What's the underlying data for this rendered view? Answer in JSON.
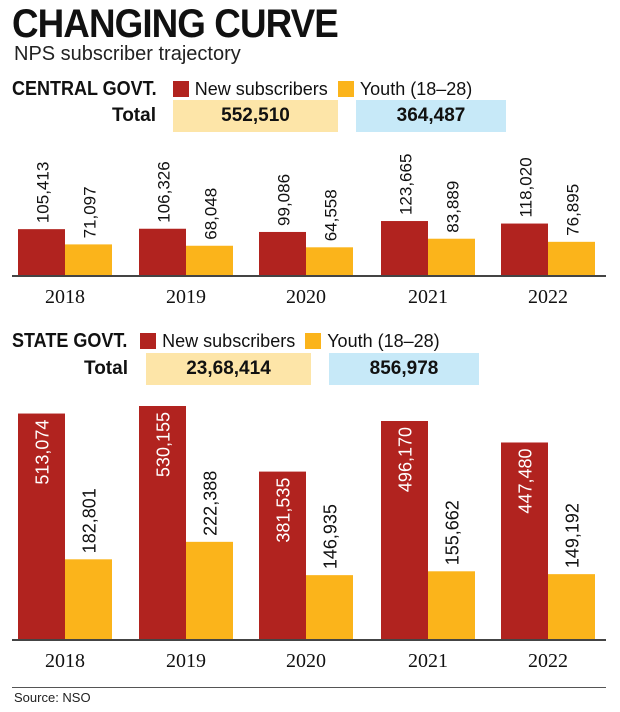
{
  "header": {
    "title": "CHANGING CURVE",
    "subtitle": "NPS subscriber trajectory"
  },
  "colors": {
    "new_subscribers": "#b1231f",
    "youth": "#fbb41b",
    "total_new_bg": "#fde5a8",
    "total_youth_bg": "#c7e9f8"
  },
  "source": "Source: NSO",
  "chart_data": [
    {
      "type": "bar",
      "section_title": "CENTRAL GOVT.",
      "categories": [
        "2018",
        "2019",
        "2020",
        "2021",
        "2022"
      ],
      "series": [
        {
          "name": "New subscribers",
          "values": [
            105413,
            106326,
            99086,
            123665,
            118020
          ],
          "labels": [
            "105,413",
            "106,326",
            "99,086",
            "123,665",
            "118,020"
          ]
        },
        {
          "name": "Youth (18–28)",
          "values": [
            71097,
            68048,
            64558,
            83889,
            76895
          ],
          "labels": [
            "71,097",
            "68,048",
            "64,558",
            "83,889",
            "76,895"
          ]
        }
      ],
      "totals_label": "Total",
      "totals": [
        "552,510",
        "364,487"
      ]
    },
    {
      "type": "bar",
      "section_title": "STATE GOVT.",
      "categories": [
        "2018",
        "2019",
        "2020",
        "2021",
        "2022"
      ],
      "series": [
        {
          "name": "New subscribers",
          "values": [
            513074,
            530155,
            381535,
            496170,
            447480
          ],
          "labels": [
            "513,074",
            "530,155",
            "381,535",
            "496,170",
            "447,480"
          ]
        },
        {
          "name": "Youth (18–28)",
          "values": [
            182801,
            222388,
            146935,
            155662,
            149192
          ],
          "labels": [
            "182,801",
            "222,388",
            "146,935",
            "155,662",
            "149,192"
          ]
        }
      ],
      "totals_label": "Total",
      "totals": [
        "23,68,414",
        "856,978"
      ]
    }
  ]
}
